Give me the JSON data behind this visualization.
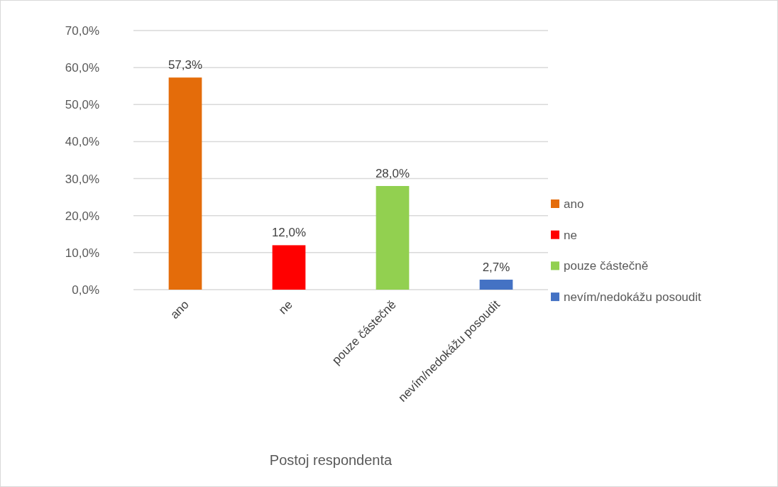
{
  "chart_data": {
    "type": "bar",
    "xlabel": "Postoj respondenta",
    "categories": [
      "ano",
      "ne",
      "pouze částečně",
      "nevím/nedokážu posoudit"
    ],
    "series": [
      {
        "name": "ano",
        "color": "#e46c0a",
        "values": [
          57.3,
          null,
          null,
          null
        ],
        "value_labels": [
          "57,3%",
          null,
          null,
          null
        ]
      },
      {
        "name": "ne",
        "color": "#ff0000",
        "values": [
          null,
          12.0,
          null,
          null
        ],
        "value_labels": [
          null,
          "12,0%",
          null,
          null
        ]
      },
      {
        "name": "pouze částečně",
        "color": "#92d050",
        "values": [
          null,
          null,
          28.0,
          null
        ],
        "value_labels": [
          null,
          null,
          "28,0%",
          null
        ]
      },
      {
        "name": "nevím/nedokážu posoudit",
        "color": "#4472c4",
        "values": [
          null,
          null,
          null,
          2.7
        ],
        "value_labels": [
          null,
          null,
          null,
          "2,7%"
        ]
      }
    ],
    "ylim": [
      0,
      70
    ],
    "yticks": [
      {
        "value": 0,
        "label": "0,0%"
      },
      {
        "value": 10,
        "label": "10,0%"
      },
      {
        "value": 20,
        "label": "20,0%"
      },
      {
        "value": 30,
        "label": "30,0%"
      },
      {
        "value": 40,
        "label": "40,0%"
      },
      {
        "value": 50,
        "label": "50,0%"
      },
      {
        "value": 60,
        "label": "60,0%"
      },
      {
        "value": 70,
        "label": "70,0%"
      }
    ],
    "grid": "y",
    "legend": "right"
  }
}
